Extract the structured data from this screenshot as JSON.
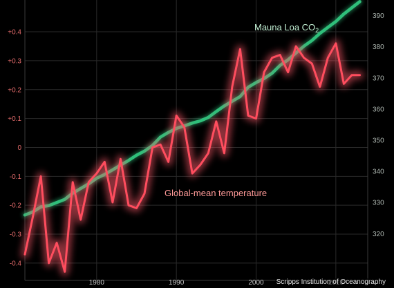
{
  "chart_data": {
    "type": "line",
    "title": "",
    "xlim": [
      1971,
      2014
    ],
    "x_ticks": [
      1980,
      1990,
      2000,
      2010
    ],
    "y_left": {
      "ylim": [
        -0.46,
        0.51
      ],
      "ticks": [
        "+0.4",
        "+0.3",
        "+0.2",
        "+0.1",
        "0",
        "-0.1",
        "-0.2",
        "-0.3",
        "-0.4"
      ],
      "tick_values": [
        0.4,
        0.3,
        0.2,
        0.1,
        0,
        -0.1,
        -0.2,
        -0.3,
        -0.4
      ],
      "color": "#e46b6b"
    },
    "y_right": {
      "ylim": [
        305,
        395
      ],
      "ticks": [
        "390",
        "380",
        "370",
        "360",
        "350",
        "340",
        "330",
        "320"
      ],
      "tick_values": [
        390,
        380,
        370,
        360,
        350,
        340,
        330,
        320
      ],
      "color": "#aeb7b1"
    },
    "grid": true,
    "series": [
      {
        "name": "Mauna Loa CO2",
        "axis": "right",
        "color": "#2fbf7a",
        "x": [
          1971,
          1972,
          1973,
          1974,
          1975,
          1976,
          1977,
          1978,
          1979,
          1980,
          1981,
          1982,
          1983,
          1984,
          1985,
          1986,
          1987,
          1988,
          1989,
          1990,
          1991,
          1992,
          1993,
          1994,
          1995,
          1996,
          1997,
          1998,
          1999,
          2000,
          2001,
          2002,
          2003,
          2004,
          2005,
          2006,
          2007,
          2008,
          2009,
          2010,
          2011,
          2012,
          2013
        ],
        "values": [
          326.0,
          327.0,
          328.6,
          329.0,
          330.0,
          331.0,
          333.0,
          334.5,
          336.0,
          337.8,
          339.0,
          340.5,
          342.0,
          343.5,
          345.2,
          346.5,
          348.3,
          351.0,
          352.5,
          353.8,
          354.6,
          355.5,
          356.2,
          357.3,
          359.2,
          361.0,
          362.5,
          364.0,
          367.0,
          368.5,
          369.8,
          371.5,
          374.0,
          375.8,
          378.0,
          380.2,
          382.0,
          384.3,
          386.2,
          388.1,
          390.5,
          392.5,
          394.5
        ]
      },
      {
        "name": "Global-mean temperature",
        "axis": "left",
        "color": "#ff4d5e",
        "x": [
          1971,
          1972,
          1973,
          1974,
          1975,
          1976,
          1977,
          1978,
          1979,
          1980,
          1981,
          1982,
          1983,
          1984,
          1985,
          1986,
          1987,
          1988,
          1989,
          1990,
          1991,
          1992,
          1993,
          1994,
          1995,
          1996,
          1997,
          1998,
          1999,
          2000,
          2001,
          2002,
          2003,
          2004,
          2005,
          2006,
          2007,
          2008,
          2009,
          2010,
          2011,
          2012,
          2013
        ],
        "values": [
          -0.37,
          -0.24,
          -0.1,
          -0.4,
          -0.33,
          -0.43,
          -0.12,
          -0.25,
          -0.12,
          -0.09,
          -0.05,
          -0.19,
          -0.04,
          -0.2,
          -0.21,
          -0.16,
          0.0,
          0.01,
          -0.05,
          0.11,
          0.07,
          -0.09,
          -0.06,
          -0.02,
          0.09,
          -0.02,
          0.21,
          0.34,
          0.11,
          0.1,
          0.26,
          0.31,
          0.32,
          0.26,
          0.35,
          0.31,
          0.29,
          0.21,
          0.31,
          0.36,
          0.22,
          0.25,
          0.25
        ]
      }
    ],
    "annotations": [
      {
        "text": "Mauna Loa CO",
        "subscript": "2",
        "color": "#c2f0d4"
      },
      {
        "text": "Global-mean temperature",
        "color": "#ff9a98"
      }
    ]
  },
  "credit": "Scripps Institution of Oceanography"
}
